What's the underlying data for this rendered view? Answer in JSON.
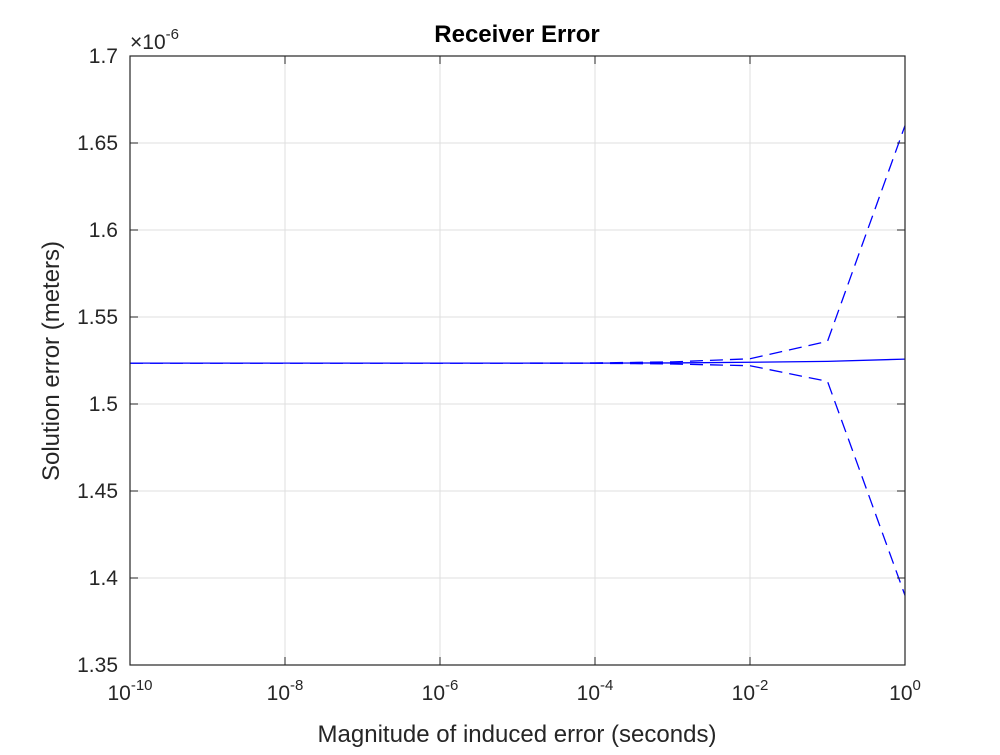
{
  "chart_data": {
    "type": "line",
    "title": "Receiver Error",
    "xlabel": "Magnitude of induced error (seconds)",
    "ylabel": "Solution error (meters)",
    "x_scale": "log",
    "xlim": [
      1e-10,
      1
    ],
    "ylim": [
      1.35e-06,
      1.7e-06
    ],
    "y_multiplier_label": {
      "base": "×10",
      "exponent": "-6"
    },
    "x_ticks": [
      {
        "value": 1e-10,
        "base": "10",
        "exponent": "-10"
      },
      {
        "value": 1e-08,
        "base": "10",
        "exponent": "-8"
      },
      {
        "value": 1e-06,
        "base": "10",
        "exponent": "-6"
      },
      {
        "value": 0.0001,
        "base": "10",
        "exponent": "-4"
      },
      {
        "value": 0.01,
        "base": "10",
        "exponent": "-2"
      },
      {
        "value": 1,
        "base": "10",
        "exponent": "0"
      }
    ],
    "y_ticks": [
      {
        "value": 1.35e-06,
        "label": "1.35"
      },
      {
        "value": 1.4e-06,
        "label": "1.4"
      },
      {
        "value": 1.45e-06,
        "label": "1.45"
      },
      {
        "value": 1.5e-06,
        "label": "1.5"
      },
      {
        "value": 1.55e-06,
        "label": "1.55"
      },
      {
        "value": 1.6e-06,
        "label": "1.6"
      },
      {
        "value": 1.65e-06,
        "label": "1.65"
      },
      {
        "value": 1.7e-06,
        "label": "1.7"
      }
    ],
    "grid": true,
    "x": [
      1e-10,
      1e-09,
      1e-08,
      1e-07,
      1e-06,
      1e-05,
      0.0001,
      0.001,
      0.01,
      0.1,
      1
    ],
    "series": [
      {
        "style": "solid",
        "color": "#0000ff",
        "values": [
          1.5235e-06,
          1.5235e-06,
          1.5235e-06,
          1.5235e-06,
          1.5235e-06,
          1.5235e-06,
          1.5235e-06,
          1.5236e-06,
          1.524e-06,
          1.5245e-06,
          1.5258e-06
        ]
      },
      {
        "style": "dashed",
        "color": "#0000ff",
        "values": [
          1.5235e-06,
          1.5235e-06,
          1.5235e-06,
          1.5235e-06,
          1.5235e-06,
          1.5235e-06,
          1.5236e-06,
          1.5242e-06,
          1.526e-06,
          1.536e-06,
          1.66e-06
        ]
      },
      {
        "style": "dashed",
        "color": "#0000ff",
        "values": [
          1.5235e-06,
          1.5235e-06,
          1.5235e-06,
          1.5235e-06,
          1.5235e-06,
          1.5235e-06,
          1.5234e-06,
          1.523e-06,
          1.522e-06,
          1.513e-06,
          1.39e-06
        ]
      }
    ]
  }
}
